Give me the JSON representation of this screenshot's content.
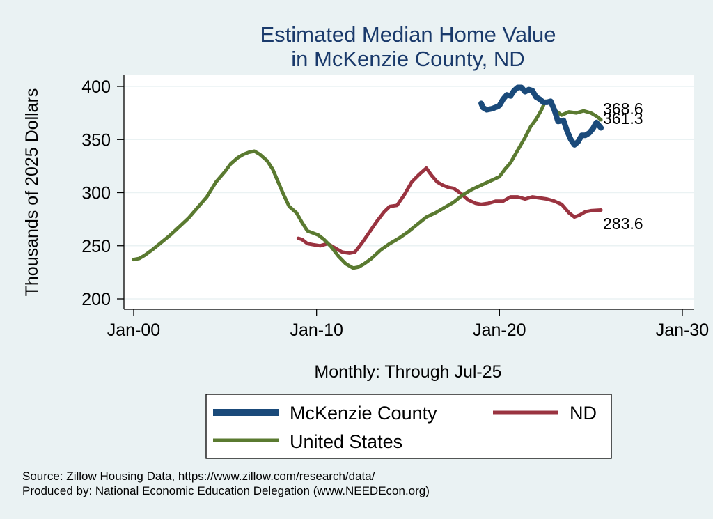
{
  "chart_data": {
    "type": "line",
    "title": [
      "Estimated Median Home Value",
      "in McKenzie County, ND"
    ],
    "xlabel": "Monthly: Through Jul-25",
    "ylabel": "Thousands of 2025 Dollars",
    "x_ticks": [
      {
        "label": "Jan-00",
        "value": 2000
      },
      {
        "label": "Jan-10",
        "value": 2010
      },
      {
        "label": "Jan-20",
        "value": 2020
      },
      {
        "label": "Jan-30",
        "value": 2030
      }
    ],
    "y_ticks": [
      200,
      250,
      300,
      350,
      400
    ],
    "xlim": [
      1999.6,
      2030
    ],
    "ylim": [
      192,
      410
    ],
    "grid": true,
    "legend_position": "bottom",
    "series": [
      {
        "name": "McKenzie County",
        "color": "#1a4a7a",
        "end_label": "361.3",
        "points": [
          [
            2019.0,
            384
          ],
          [
            2019.1,
            380
          ],
          [
            2019.3,
            378
          ],
          [
            2019.6,
            379
          ],
          [
            2019.9,
            381
          ],
          [
            2020.0,
            382
          ],
          [
            2020.2,
            388
          ],
          [
            2020.4,
            392
          ],
          [
            2020.6,
            391
          ],
          [
            2020.8,
            396
          ],
          [
            2021.0,
            399
          ],
          [
            2021.2,
            399
          ],
          [
            2021.4,
            395
          ],
          [
            2021.6,
            397
          ],
          [
            2021.8,
            396
          ],
          [
            2022.0,
            390
          ],
          [
            2022.2,
            388
          ],
          [
            2022.4,
            385
          ],
          [
            2022.6,
            385
          ],
          [
            2022.8,
            386
          ],
          [
            2023.0,
            378
          ],
          [
            2023.2,
            367
          ],
          [
            2023.5,
            368
          ],
          [
            2023.7,
            358
          ],
          [
            2023.9,
            350
          ],
          [
            2024.1,
            345
          ],
          [
            2024.3,
            348
          ],
          [
            2024.5,
            354
          ],
          [
            2024.7,
            354
          ],
          [
            2024.9,
            356
          ],
          [
            2025.1,
            360
          ],
          [
            2025.3,
            366
          ],
          [
            2025.55,
            361
          ]
        ]
      },
      {
        "name": "ND",
        "color": "#9a3340",
        "end_label": "283.6",
        "points": [
          [
            2009.0,
            257
          ],
          [
            2009.2,
            256
          ],
          [
            2009.5,
            252
          ],
          [
            2009.8,
            251
          ],
          [
            2010.2,
            250
          ],
          [
            2010.6,
            252
          ],
          [
            2011.0,
            248
          ],
          [
            2011.4,
            244
          ],
          [
            2011.8,
            243
          ],
          [
            2012.1,
            244
          ],
          [
            2012.5,
            253
          ],
          [
            2012.9,
            263
          ],
          [
            2013.3,
            273
          ],
          [
            2013.7,
            282
          ],
          [
            2014.0,
            287
          ],
          [
            2014.4,
            288
          ],
          [
            2014.8,
            298
          ],
          [
            2015.2,
            310
          ],
          [
            2015.6,
            317
          ],
          [
            2016.0,
            323
          ],
          [
            2016.3,
            316
          ],
          [
            2016.6,
            310
          ],
          [
            2016.9,
            307
          ],
          [
            2017.2,
            305
          ],
          [
            2017.5,
            304
          ],
          [
            2017.9,
            299
          ],
          [
            2018.3,
            293
          ],
          [
            2018.7,
            290
          ],
          [
            2019.0,
            289
          ],
          [
            2019.4,
            290
          ],
          [
            2019.8,
            292
          ],
          [
            2020.2,
            292
          ],
          [
            2020.6,
            296
          ],
          [
            2021.0,
            296
          ],
          [
            2021.4,
            294
          ],
          [
            2021.8,
            296
          ],
          [
            2022.2,
            295
          ],
          [
            2022.6,
            294
          ],
          [
            2023.0,
            292
          ],
          [
            2023.4,
            289
          ],
          [
            2023.8,
            281
          ],
          [
            2024.1,
            277
          ],
          [
            2024.4,
            279
          ],
          [
            2024.7,
            282
          ],
          [
            2025.0,
            283
          ],
          [
            2025.55,
            283.6
          ]
        ]
      },
      {
        "name": "United States",
        "color": "#5a7a30",
        "end_label": "368.6",
        "points": [
          [
            2000.0,
            237
          ],
          [
            2000.3,
            238
          ],
          [
            2000.6,
            241
          ],
          [
            2001.0,
            246
          ],
          [
            2001.5,
            253
          ],
          [
            2002.0,
            260
          ],
          [
            2002.5,
            268
          ],
          [
            2003.0,
            276
          ],
          [
            2003.5,
            286
          ],
          [
            2004.0,
            296
          ],
          [
            2004.5,
            310
          ],
          [
            2005.0,
            320
          ],
          [
            2005.3,
            327
          ],
          [
            2005.7,
            333
          ],
          [
            2006.0,
            336
          ],
          [
            2006.3,
            338
          ],
          [
            2006.6,
            339
          ],
          [
            2006.9,
            336
          ],
          [
            2007.3,
            330
          ],
          [
            2007.6,
            322
          ],
          [
            2007.9,
            310
          ],
          [
            2008.2,
            298
          ],
          [
            2008.5,
            287
          ],
          [
            2008.9,
            281
          ],
          [
            2009.2,
            272
          ],
          [
            2009.5,
            264
          ],
          [
            2009.8,
            262
          ],
          [
            2010.1,
            260
          ],
          [
            2010.4,
            256
          ],
          [
            2010.8,
            249
          ],
          [
            2011.2,
            240
          ],
          [
            2011.6,
            233
          ],
          [
            2012.0,
            229
          ],
          [
            2012.3,
            230
          ],
          [
            2012.6,
            233
          ],
          [
            2013.0,
            238
          ],
          [
            2013.5,
            246
          ],
          [
            2014.0,
            252
          ],
          [
            2014.5,
            257
          ],
          [
            2015.0,
            263
          ],
          [
            2015.5,
            270
          ],
          [
            2016.0,
            277
          ],
          [
            2016.5,
            281
          ],
          [
            2017.0,
            286
          ],
          [
            2017.5,
            291
          ],
          [
            2018.0,
            298
          ],
          [
            2018.5,
            303
          ],
          [
            2019.0,
            307
          ],
          [
            2019.5,
            311
          ],
          [
            2020.0,
            315
          ],
          [
            2020.3,
            322
          ],
          [
            2020.6,
            328
          ],
          [
            2021.0,
            340
          ],
          [
            2021.4,
            352
          ],
          [
            2021.7,
            362
          ],
          [
            2022.0,
            369
          ],
          [
            2022.3,
            378
          ],
          [
            2022.5,
            386
          ],
          [
            2022.7,
            386
          ],
          [
            2023.0,
            378
          ],
          [
            2023.4,
            373
          ],
          [
            2023.8,
            376
          ],
          [
            2024.2,
            375
          ],
          [
            2024.6,
            377
          ],
          [
            2025.0,
            375
          ],
          [
            2025.3,
            372
          ],
          [
            2025.55,
            368.6
          ]
        ]
      }
    ]
  },
  "source_note": "Source: Zillow Housing Data, https://www.zillow.com/research/data/",
  "producer_note": "Produced by: National Economic Education Delegation (www.NEEDEcon.org)"
}
